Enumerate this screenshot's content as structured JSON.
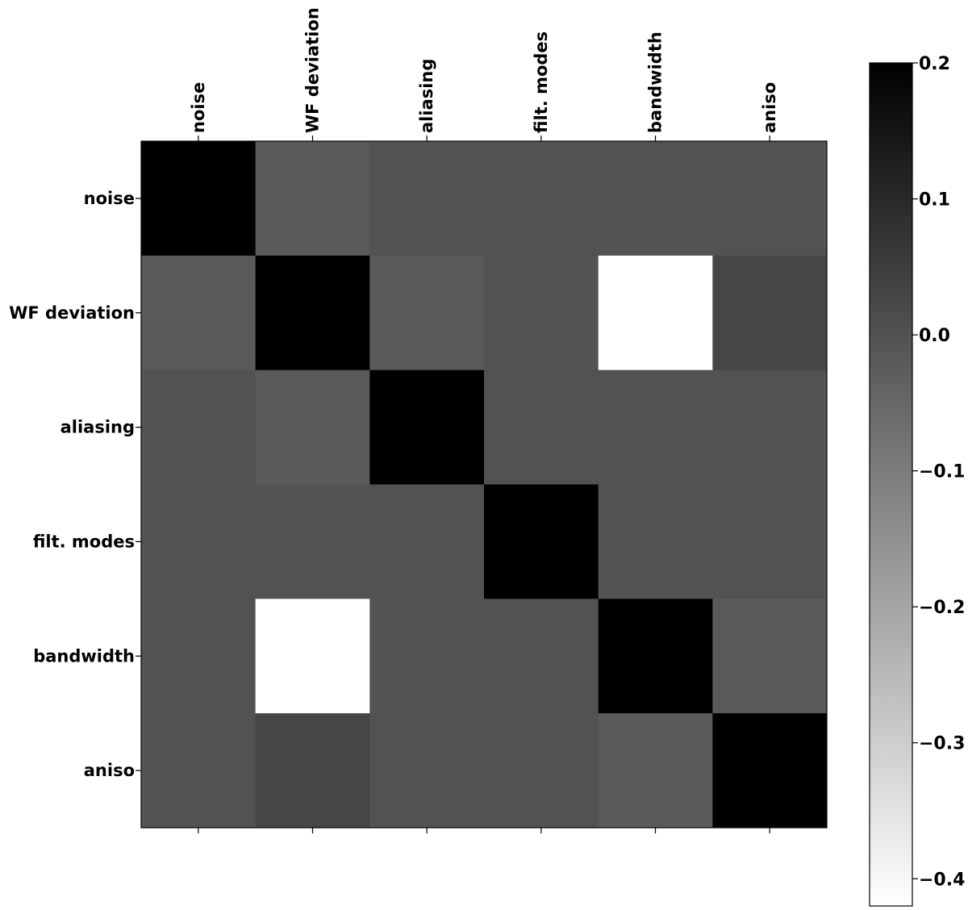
{
  "chart_data": {
    "type": "heatmap",
    "title": "",
    "xlabel": "",
    "ylabel": "",
    "x_categories": [
      "noise",
      "WF deviation",
      "aliasing",
      "filt. modes",
      "bandwidth",
      "aniso"
    ],
    "y_categories": [
      "noise",
      "WF deviation",
      "aliasing",
      "filt. modes",
      "bandwidth",
      "aniso"
    ],
    "values": [
      [
        0.2,
        -0.02,
        0.0,
        0.0,
        0.0,
        0.0
      ],
      [
        -0.02,
        0.2,
        -0.02,
        0.0,
        -0.42,
        0.03
      ],
      [
        0.0,
        -0.02,
        0.2,
        0.0,
        0.0,
        0.0
      ],
      [
        0.0,
        0.0,
        0.0,
        0.2,
        0.0,
        0.0
      ],
      [
        0.0,
        -0.42,
        0.0,
        0.0,
        0.2,
        -0.02
      ],
      [
        0.0,
        0.03,
        0.0,
        0.0,
        -0.02,
        0.2
      ]
    ],
    "colormap": "gray_r",
    "color_min": -0.42,
    "color_max": 0.2,
    "colorbar_ticks": [
      0.2,
      0.1,
      0.0,
      -0.1,
      -0.2,
      -0.3,
      -0.4
    ],
    "colorbar_tick_labels": [
      "0.2",
      "0.1",
      "0.0",
      "−0.1",
      "−0.2",
      "−0.3",
      "−0.4"
    ],
    "x_ticks_position": "top",
    "x_label_rotation": 90,
    "grid": false,
    "legend": "colorbar-right"
  }
}
